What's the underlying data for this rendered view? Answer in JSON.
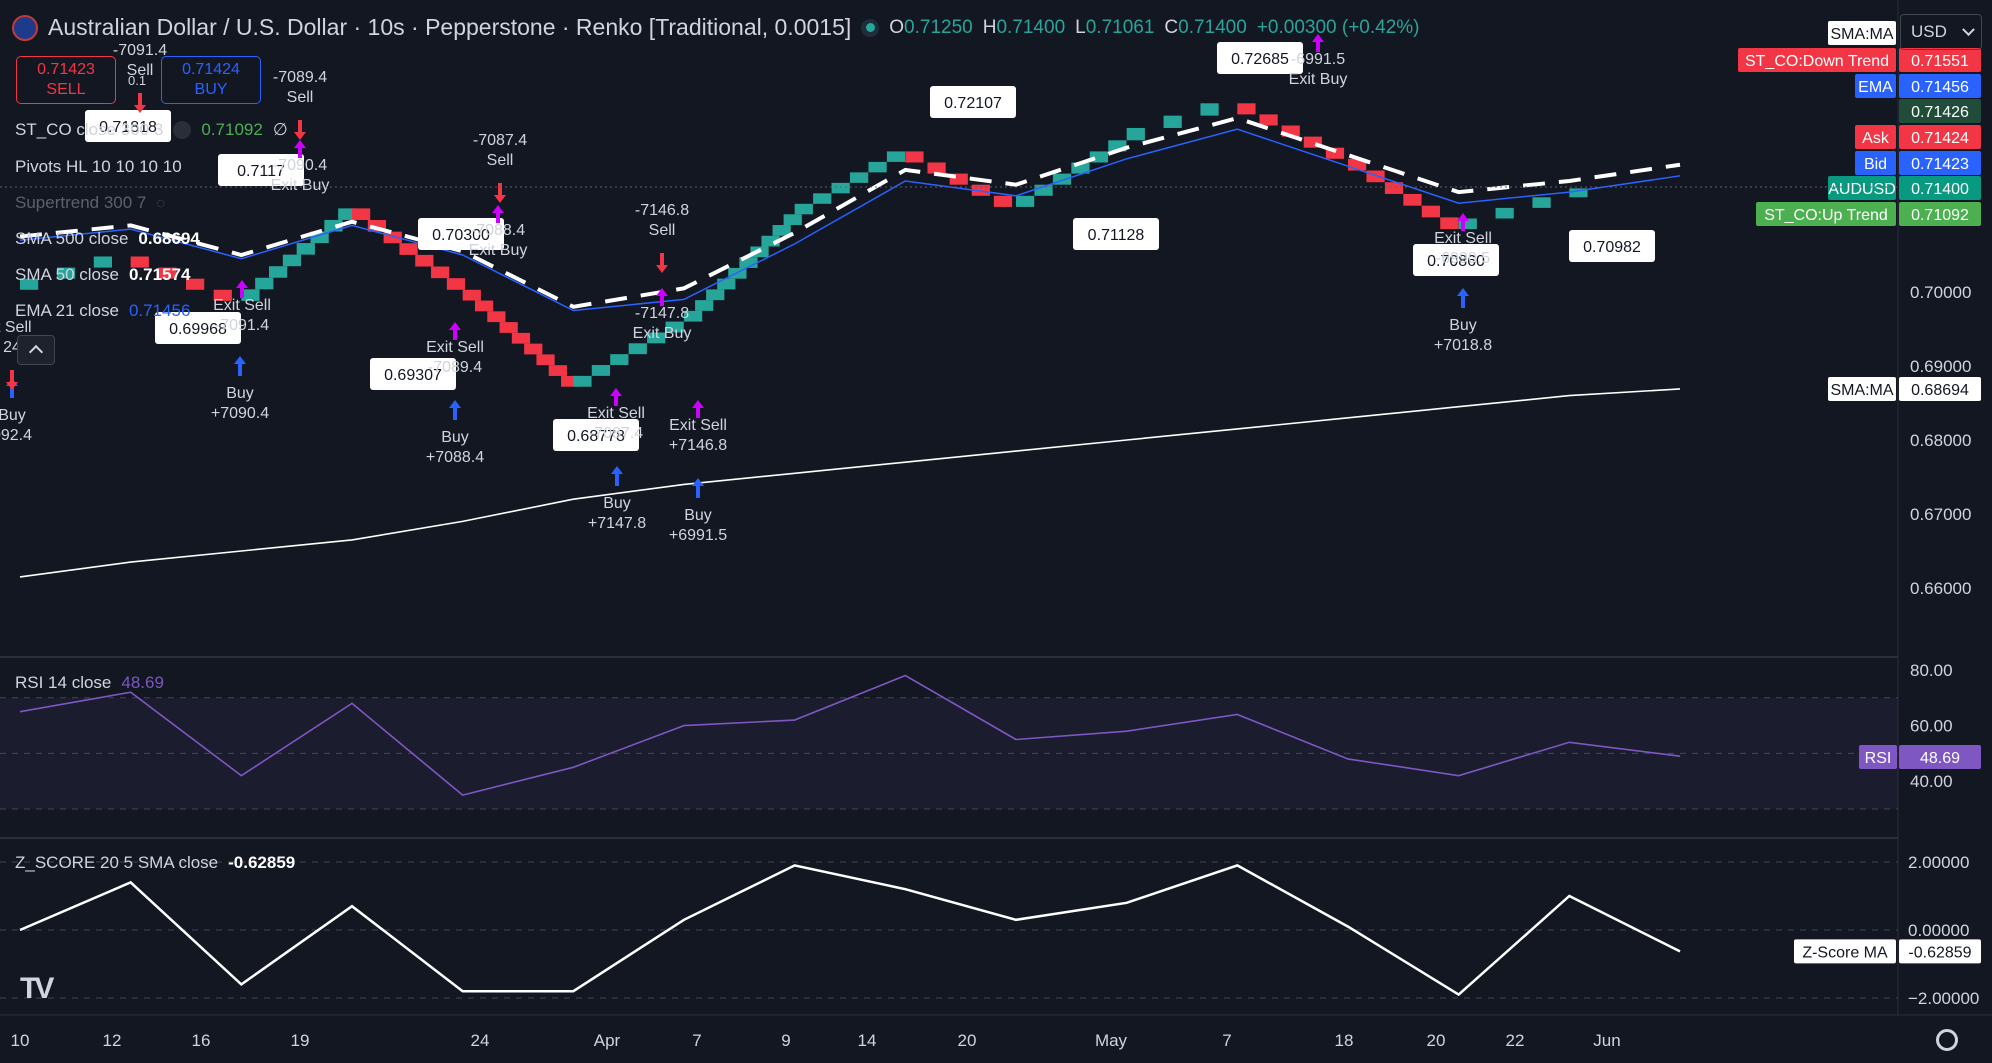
{
  "header": {
    "title": "Australian Dollar / U.S. Dollar · 10s · Pepperstone · Renko [Traditional, 0.0015]",
    "ohlc": [
      {
        "k": "O",
        "v": "0.71250"
      },
      {
        "k": "H",
        "v": "0.71400"
      },
      {
        "k": "L",
        "v": "0.71061"
      },
      {
        "k": "C",
        "v": "0.71400"
      },
      {
        "k": "",
        "v": "+0.00300 (+0.42%)"
      }
    ]
  },
  "trade": {
    "sell_price": "0.71423",
    "sell_label": "SELL",
    "buy_price": "0.71424",
    "buy_label": "BUY",
    "spread": "0.1"
  },
  "currency": "USD",
  "legends": {
    "st_co": {
      "name": "ST_CO close 300 3",
      "value": "0.71092",
      "extra": "∅"
    },
    "pivots": {
      "name": "Pivots HL 10 10 10 10"
    },
    "supertrend": {
      "name": "Supertrend 300 7"
    },
    "sma500": {
      "name": "SMA 500 close",
      "value": "0.68694"
    },
    "sma50": {
      "name": "SMA 50 close",
      "value": "0.71574"
    },
    "ema21": {
      "name": "EMA 21 close",
      "value": "0.71456"
    },
    "rsi": {
      "name": "RSI 14 close",
      "value": "48.69"
    },
    "z": {
      "name": "Z_SCORE 20 5 SMA close",
      "value": "-0.62859"
    }
  },
  "colors": {
    "bg": "#131722",
    "up": "#26a69a",
    "down": "#f23645",
    "ema": "#2962ff",
    "rsi": "#7e57c2",
    "signal": "#cc00ff"
  },
  "price_axis": {
    "ticks": [
      "0.70000",
      "0.69000",
      "0.68000",
      "0.67000",
      "0.66000"
    ]
  },
  "rsi_axis": {
    "ticks": [
      "80.00",
      "60.00",
      "40.00"
    ]
  },
  "z_axis": {
    "ticks": [
      "2.00000",
      "0.00000",
      "−2.00000"
    ]
  },
  "time_axis": {
    "labels": [
      "10",
      "12",
      "16",
      "19",
      "24",
      "Apr",
      "7",
      "9",
      "14",
      "20",
      "May",
      "7",
      "18",
      "20",
      "22",
      "Jun"
    ]
  },
  "price_tags": [
    {
      "name": "SMA:MA",
      "value": ""
    },
    {
      "name": "ST_CO:Down Trend",
      "value": "0.71551",
      "color": "#f23645"
    },
    {
      "name": "EMA",
      "value": "0.71456",
      "color": "#2962ff"
    },
    {
      "name": "",
      "value": "0.71426",
      "color": "#1f4d3a"
    },
    {
      "name": "Ask",
      "value": "0.71424",
      "color": "#f23645"
    },
    {
      "name": "Bid",
      "value": "0.71423",
      "color": "#2962ff"
    },
    {
      "name": "AUDUSD",
      "value": "0.71400",
      "color": "#089981"
    },
    {
      "name": "ST_CO:Up Trend",
      "value": "0.71092",
      "color": "#4caf50"
    },
    {
      "name": "SMA:MA",
      "value": "0.68694",
      "color": "#ffffff"
    }
  ],
  "rsi_tag": {
    "name": "RSI",
    "value": "48.69"
  },
  "z_tag": {
    "name": "Z-Score MA",
    "value": "-0.62859"
  },
  "pivot_labels": [
    "0.71818",
    "0.7117",
    "0.70300",
    "0.69968",
    "0.69307",
    "0.68778",
    "0.72107",
    "0.72685",
    "0.71128",
    "0.70860",
    "0.70982"
  ],
  "signals": [
    {
      "text": "-7091.4 Sell"
    },
    {
      "text": "-7089.4 Sell"
    },
    {
      "text": "-7090.4 Exit Buy"
    },
    {
      "text": "-7087.4 Sell"
    },
    {
      "text": "-7088.4 Exit Buy"
    },
    {
      "text": "-7146.8 Sell"
    },
    {
      "text": "-7147.8 Exit Buy"
    },
    {
      "text": "-6991.5 Exit Buy"
    },
    {
      "text": "Exit Sell -7091.4"
    },
    {
      "text": "Exit Sell -7089.4"
    },
    {
      "text": "Exit Sell -7087.4"
    },
    {
      "text": "Exit Sell +7146.8"
    },
    {
      "text": "Exit Sell -6990.5"
    },
    {
      "text": "Buy +7090.4"
    },
    {
      "text": "Buy +7088.4"
    },
    {
      "text": "Buy +7147.8"
    },
    {
      "text": "Buy +6991.5"
    },
    {
      "text": "Buy +7018.8"
    },
    {
      "text": "Buy 092.4"
    },
    {
      "text": "it Sell 24"
    }
  ],
  "chart_data": [
    {
      "type": "line",
      "title": "Australian Dollar / U.S. Dollar · 10s · Pepperstone · Renko [Traditional, 0.0015]",
      "box_size": 0.0015,
      "x": [
        "10",
        "12",
        "16",
        "19",
        "24",
        "Apr",
        "7",
        "9",
        "14",
        "20",
        "May",
        "7",
        "18",
        "20",
        "22",
        "Jun"
      ],
      "series": [
        {
          "name": "AUDUSD",
          "values": [
            0.7003,
            0.7048,
            0.6988,
            0.7113,
            0.7003,
            0.6872,
            0.696,
            0.7105,
            0.719,
            0.7115,
            0.7205,
            0.7255,
            0.718,
            0.7085,
            0.7128,
            0.714
          ]
        },
        {
          "name": "SMA 50 close",
          "values": [
            0.707,
            0.7085,
            0.7045,
            0.709,
            0.705,
            0.6975,
            0.699,
            0.7065,
            0.715,
            0.713,
            0.718,
            0.722,
            0.717,
            0.712,
            0.7135,
            0.7157
          ]
        },
        {
          "name": "SMA 500 close",
          "values": [
            0.6615,
            0.6635,
            0.665,
            0.6665,
            0.669,
            0.672,
            0.674,
            0.6755,
            0.677,
            0.6785,
            0.68,
            0.6815,
            0.683,
            0.6845,
            0.686,
            0.6869
          ]
        }
      ],
      "ylim": [
        0.655,
        0.73
      ]
    },
    {
      "type": "line",
      "x": [
        "10",
        "12",
        "16",
        "19",
        "24",
        "Apr",
        "7",
        "9",
        "14",
        "20",
        "May",
        "7",
        "18",
        "20",
        "22",
        "Jun"
      ],
      "series": [
        {
          "name": "RSI",
          "values": [
            65,
            72,
            42,
            68,
            35,
            45,
            60,
            62,
            78,
            55,
            58,
            64,
            48,
            42,
            54,
            49
          ]
        }
      ],
      "ylim": [
        30,
        82
      ]
    },
    {
      "type": "line",
      "x": [
        "10",
        "12",
        "16",
        "19",
        "24",
        "Apr",
        "7",
        "9",
        "14",
        "20",
        "May",
        "7",
        "18",
        "20",
        "22",
        "Jun"
      ],
      "series": [
        {
          "name": "Z-Score MA",
          "values": [
            0.0,
            1.4,
            -1.6,
            0.7,
            -1.8,
            -1.8,
            0.3,
            1.9,
            1.2,
            0.3,
            0.8,
            1.9,
            0.1,
            -1.9,
            1.0,
            -0.63
          ]
        }
      ],
      "ylim": [
        -2.4,
        2.4
      ]
    }
  ]
}
